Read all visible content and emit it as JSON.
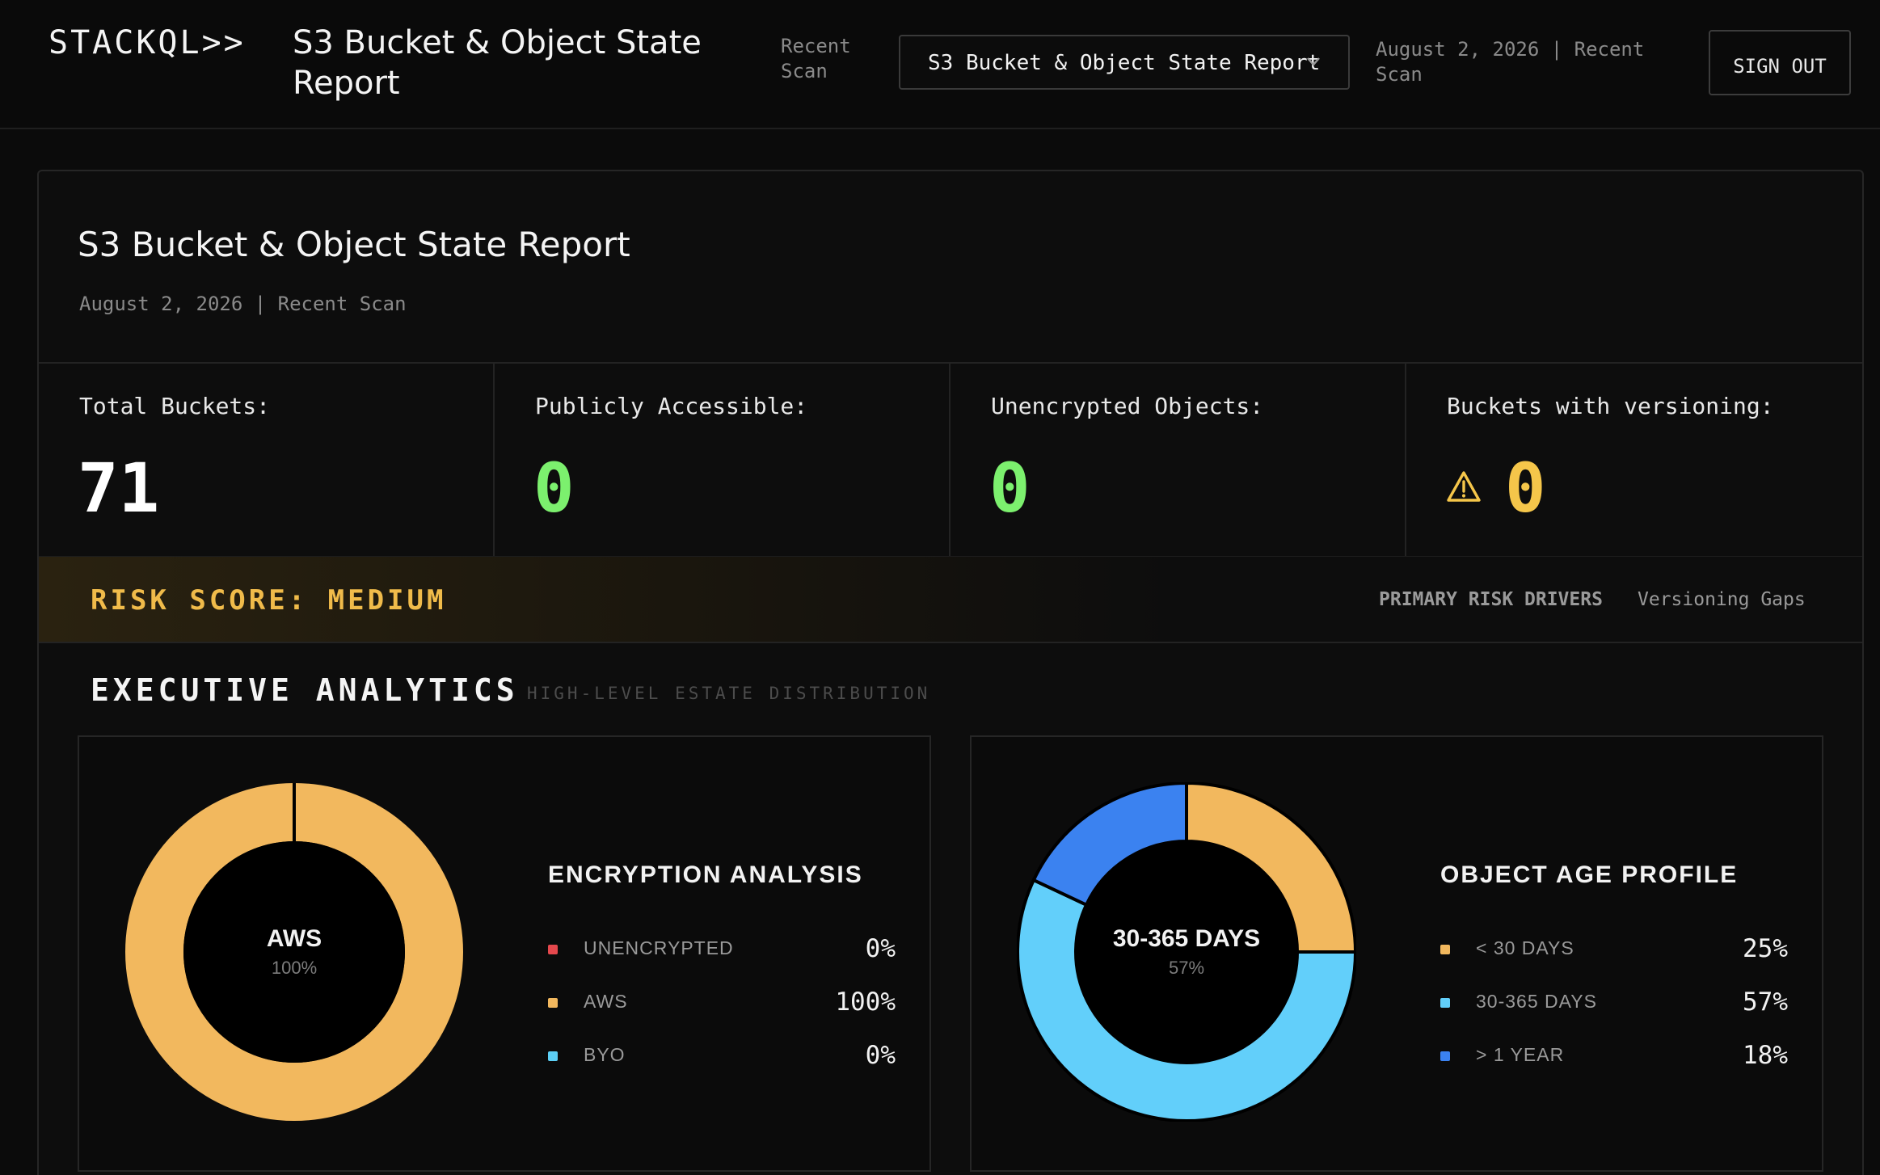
{
  "header": {
    "logo": "STACKQL>>",
    "report_title": "S3 Bucket & Object State Report",
    "scan_label": "Recent Scan",
    "selected_report": "S3 Bucket & Object State Report",
    "date_label": "August 2, 2026 | Recent Scan",
    "sign_out": "SIGN OUT"
  },
  "report": {
    "title": "S3 Bucket & Object State Report",
    "date": "August 2, 2026 | Recent Scan"
  },
  "stats": [
    {
      "label": "Total Buckets:",
      "value": "71",
      "color": "#ffffff"
    },
    {
      "label": "Publicly Accessible:",
      "value": "0",
      "color": "#7cf06e"
    },
    {
      "label": "Unencrypted Objects:",
      "value": "0",
      "color": "#7cf06e"
    },
    {
      "label": "Buckets with versioning:",
      "value": "0",
      "color": "#f5c64a",
      "icon": "warning-icon"
    }
  ],
  "risk": {
    "score": "RISK SCORE: MEDIUM",
    "drivers_label": "PRIMARY RISK DRIVERS",
    "drivers_value": "Versioning Gaps",
    "color": "#f0bb4a"
  },
  "analytics": {
    "title": "EXECUTIVE ANALYTICS",
    "subtitle": "HIGH-LEVEL ESTATE DISTRIBUTION"
  },
  "chart_data": [
    {
      "type": "pie",
      "title": "ENCRYPTION ANALYSIS",
      "center_label": "AWS",
      "center_value": "100%",
      "categories": [
        "UNENCRYPTED",
        "AWS",
        "BYO"
      ],
      "values": [
        0,
        100,
        0
      ],
      "labels": [
        "0%",
        "100%",
        "0%"
      ],
      "colors": [
        "#e5484d",
        "#f2b85e",
        "#5ccff5"
      ]
    },
    {
      "type": "pie",
      "title": "OBJECT AGE PROFILE",
      "center_label": "30-365 DAYS",
      "center_value": "57%",
      "categories": [
        "< 30 DAYS",
        "30-365 DAYS",
        "> 1 YEAR"
      ],
      "values": [
        25,
        57,
        18
      ],
      "labels": [
        "25%",
        "57%",
        "18%"
      ],
      "colors": [
        "#f2b85e",
        "#62cffa",
        "#3b82f0"
      ]
    }
  ]
}
